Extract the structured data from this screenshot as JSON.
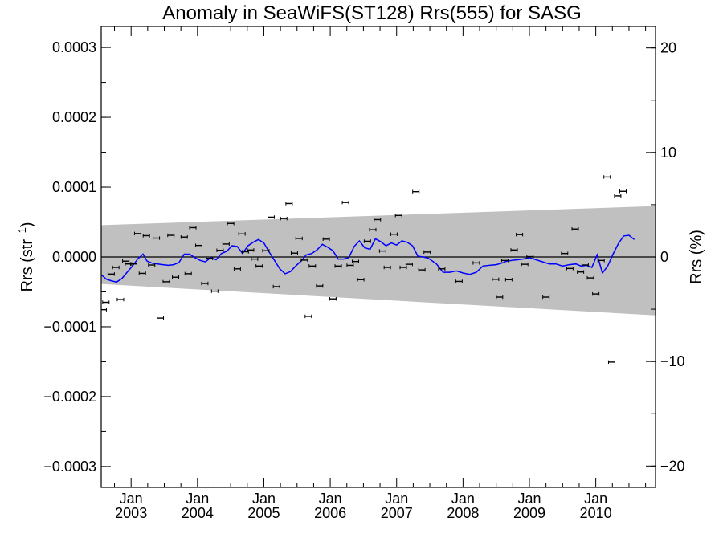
{
  "chart_data": {
    "type": "scatter",
    "title": "Anomaly in SeaWiFS(ST128) Rrs(555) for SASG",
    "ylabel_base": "Rrs (str",
    "ylabel_sup": "−1",
    "ylabel_end": ")",
    "ylabel_right": "Rrs (%)",
    "xlim": [
      2002.55,
      2010.9
    ],
    "ylim": [
      -0.00033,
      0.00033
    ],
    "ylim_right": [
      -22.05,
      22.05
    ],
    "x_ticks": [
      {
        "x": 2003.0,
        "top": "Jan",
        "bottom": "2003"
      },
      {
        "x": 2004.0,
        "top": "Jan",
        "bottom": "2004"
      },
      {
        "x": 2005.0,
        "top": "Jan",
        "bottom": "2005"
      },
      {
        "x": 2006.0,
        "top": "Jan",
        "bottom": "2006"
      },
      {
        "x": 2007.0,
        "top": "Jan",
        "bottom": "2007"
      },
      {
        "x": 2008.0,
        "top": "Jan",
        "bottom": "2008"
      },
      {
        "x": 2009.0,
        "top": "Jan",
        "bottom": "2009"
      },
      {
        "x": 2010.0,
        "top": "Jan",
        "bottom": "2010"
      }
    ],
    "y_ticks": [
      {
        "v": 0.0003,
        "label": "0.0003"
      },
      {
        "v": 0.0002,
        "label": "0.0002"
      },
      {
        "v": 0.0001,
        "label": "0.0001"
      },
      {
        "v": 0.0,
        "label": "0.0000"
      },
      {
        "v": -0.0001,
        "label": "−0.0001"
      },
      {
        "v": -0.0002,
        "label": "−0.0002"
      },
      {
        "v": -0.0003,
        "label": "−0.0003"
      }
    ],
    "y_ticks_right": [
      {
        "v": 20,
        "label": "20"
      },
      {
        "v": 10,
        "label": "10"
      },
      {
        "v": 0,
        "label": "0"
      },
      {
        "v": -10,
        "label": "−10"
      },
      {
        "v": -20,
        "label": "−20"
      }
    ],
    "uncertainty_band": {
      "x": [
        2002.55,
        2010.9
      ],
      "upper": [
        4.55e-05,
        7.28e-05
      ],
      "lower": [
        -3.87e-05,
        -8.37e-05
      ]
    },
    "zero_line": true,
    "colors": {
      "points": "#000000",
      "smooth": "#0000ff",
      "band": "#c0c0c0",
      "axes": "#000000"
    },
    "points": [
      {
        "x": 2002.58,
        "y": -7.55e-05
      },
      {
        "x": 2002.62,
        "y": -6.5e-05
      },
      {
        "x": 2002.7,
        "y": -2.45e-05
      },
      {
        "x": 2002.77,
        "y": -1.5e-05
      },
      {
        "x": 2002.84,
        "y": -6.1e-05
      },
      {
        "x": 2002.92,
        "y": -6e-06
      },
      {
        "x": 2002.96,
        "y": -1e-05
      },
      {
        "x": 2003.04,
        "y": -1e-05
      },
      {
        "x": 2003.1,
        "y": 3.35e-05
      },
      {
        "x": 2003.17,
        "y": -2.35e-05
      },
      {
        "x": 2003.23,
        "y": 3.05e-05
      },
      {
        "x": 2003.31,
        "y": -1.15e-05
      },
      {
        "x": 2003.38,
        "y": 2.7e-05
      },
      {
        "x": 2003.44,
        "y": -8.75e-05
      },
      {
        "x": 2003.53,
        "y": -3.55e-05
      },
      {
        "x": 2003.6,
        "y": 3.1e-05
      },
      {
        "x": 2003.67,
        "y": -2.9e-05
      },
      {
        "x": 2003.8,
        "y": 2.85e-05
      },
      {
        "x": 2003.86,
        "y": -2.4e-05
      },
      {
        "x": 2003.93,
        "y": 4.2e-05
      },
      {
        "x": 2004.02,
        "y": 1.65e-05
      },
      {
        "x": 2004.11,
        "y": -3.8e-05
      },
      {
        "x": 2004.18,
        "y": -2e-06
      },
      {
        "x": 2004.26,
        "y": -4.9e-05
      },
      {
        "x": 2004.34,
        "y": 9.5e-06
      },
      {
        "x": 2004.43,
        "y": 1.85e-05
      },
      {
        "x": 2004.5,
        "y": 4.8e-05
      },
      {
        "x": 2004.6,
        "y": -1.7e-05
      },
      {
        "x": 2004.67,
        "y": 3.3e-05
      },
      {
        "x": 2004.72,
        "y": 7.5e-06
      },
      {
        "x": 2004.8,
        "y": 1e-05
      },
      {
        "x": 2004.86,
        "y": -3e-06
      },
      {
        "x": 2004.93,
        "y": -1.3e-05
      },
      {
        "x": 2005.03,
        "y": 9e-06
      },
      {
        "x": 2005.11,
        "y": 5.7e-05
      },
      {
        "x": 2005.19,
        "y": -4.25e-05
      },
      {
        "x": 2005.3,
        "y": 5.5e-05
      },
      {
        "x": 2005.38,
        "y": 7.65e-05
      },
      {
        "x": 2005.46,
        "y": 5.5e-06
      },
      {
        "x": 2005.53,
        "y": 2.65e-05
      },
      {
        "x": 2005.61,
        "y": -4.5e-06
      },
      {
        "x": 2005.67,
        "y": -8.5e-05
      },
      {
        "x": 2005.73,
        "y": -1.3e-05
      },
      {
        "x": 2005.84,
        "y": -4.15e-05
      },
      {
        "x": 2005.94,
        "y": 2.55e-05
      },
      {
        "x": 2006.04,
        "y": -6e-05
      },
      {
        "x": 2006.12,
        "y": -1.3e-05
      },
      {
        "x": 2006.23,
        "y": 7.8e-05
      },
      {
        "x": 2006.3,
        "y": -1.2e-05
      },
      {
        "x": 2006.38,
        "y": -6.5e-06
      },
      {
        "x": 2006.46,
        "y": -3.25e-05
      },
      {
        "x": 2006.56,
        "y": 2.25e-05
      },
      {
        "x": 2006.64,
        "y": 3.9e-05
      },
      {
        "x": 2006.71,
        "y": 5.35e-05
      },
      {
        "x": 2006.79,
        "y": 8.5e-06
      },
      {
        "x": 2006.86,
        "y": -1.5e-05
      },
      {
        "x": 2006.96,
        "y": 3.25e-05
      },
      {
        "x": 2007.03,
        "y": 5.95e-05
      },
      {
        "x": 2007.1,
        "y": -1.5e-05
      },
      {
        "x": 2007.19,
        "y": -1.05e-05
      },
      {
        "x": 2007.29,
        "y": 9.35e-05
      },
      {
        "x": 2007.38,
        "y": -1.85e-05
      },
      {
        "x": 2007.46,
        "y": 7e-06
      },
      {
        "x": 2007.68,
        "y": -1.7e-05
      },
      {
        "x": 2007.94,
        "y": -3.5e-05
      },
      {
        "x": 2008.2,
        "y": -8.5e-06
      },
      {
        "x": 2008.49,
        "y": -3.2e-05
      },
      {
        "x": 2008.55,
        "y": -5.75e-05
      },
      {
        "x": 2008.63,
        "y": -5e-06
      },
      {
        "x": 2008.69,
        "y": -3.25e-05
      },
      {
        "x": 2008.77,
        "y": 1e-05
      },
      {
        "x": 2008.85,
        "y": 3.2e-05
      },
      {
        "x": 2008.93,
        "y": -1.05e-05
      },
      {
        "x": 2009.01,
        "y": 5e-07
      },
      {
        "x": 2009.25,
        "y": -5.75e-05
      },
      {
        "x": 2009.53,
        "y": 5e-06
      },
      {
        "x": 2009.61,
        "y": -1.65e-05
      },
      {
        "x": 2009.69,
        "y": 4e-05
      },
      {
        "x": 2009.77,
        "y": -2.15e-05
      },
      {
        "x": 2009.84,
        "y": -1.15e-05
      },
      {
        "x": 2009.92,
        "y": -3e-05
      },
      {
        "x": 2010.0,
        "y": -5.3e-05
      },
      {
        "x": 2010.08,
        "y": -5e-06
      },
      {
        "x": 2010.17,
        "y": 0.0001145
      },
      {
        "x": 2010.24,
        "y": -0.0001505
      },
      {
        "x": 2010.33,
        "y": 8.75e-05
      },
      {
        "x": 2010.41,
        "y": 9.4e-05
      }
    ],
    "smooth_line": {
      "x": [
        2002.55,
        2002.63,
        2002.7,
        2002.78,
        2002.86,
        2002.94,
        2003.02,
        2003.1,
        2003.18,
        2003.24,
        2003.32,
        2003.4,
        2003.48,
        2003.56,
        2003.64,
        2003.72,
        2003.8,
        2003.88,
        2003.96,
        2004.04,
        2004.12,
        2004.2,
        2004.28,
        2004.36,
        2004.44,
        2004.52,
        2004.6,
        2004.68,
        2004.76,
        2004.84,
        2004.92,
        2005.0,
        2005.08,
        2005.16,
        2005.24,
        2005.32,
        2005.4,
        2005.48,
        2005.56,
        2005.64,
        2005.72,
        2005.8,
        2005.88,
        2005.96,
        2006.04,
        2006.12,
        2006.2,
        2006.28,
        2006.36,
        2006.44,
        2006.52,
        2006.6,
        2006.68,
        2006.76,
        2006.84,
        2006.92,
        2007.0,
        2007.08,
        2007.16,
        2007.24,
        2007.32,
        2007.4,
        2007.48,
        2007.6,
        2007.7,
        2007.8,
        2007.9,
        2008.0,
        2008.1,
        2008.2,
        2008.3,
        2008.4,
        2008.5,
        2008.58,
        2008.66,
        2008.74,
        2008.82,
        2008.9,
        2009.0,
        2009.1,
        2009.2,
        2009.3,
        2009.4,
        2009.5,
        2009.6,
        2009.7,
        2009.78,
        2009.86,
        2009.94,
        2010.02,
        2010.1,
        2010.18,
        2010.26,
        2010.34,
        2010.42,
        2010.5,
        2010.58
      ],
      "y": [
        -2.55e-05,
        -3.2e-05,
        -3.4e-05,
        -3.6e-05,
        -3.1e-05,
        -2.2e-05,
        -1.3e-05,
        -3e-06,
        4e-06,
        -6e-06,
        -9e-06,
        -1e-05,
        -1.1e-05,
        -1.2e-05,
        -1.1e-05,
        -8e-06,
        4e-06,
        4e-06,
        -1e-06,
        -5e-06,
        -7e-06,
        -1e-06,
        -4e-06,
        5e-06,
        8e-06,
        1.6e-05,
        1.5e-05,
        5e-06,
        1.6e-05,
        2.1e-05,
        2.5e-05,
        2e-05,
        7e-06,
        -5e-06,
        -1.7e-05,
        -2.4e-05,
        -2.1e-05,
        -1.3e-05,
        -6e-06,
        3e-06,
        5e-06,
        1e-05,
        1.8e-05,
        1.4e-05,
        9e-06,
        -3e-06,
        -3e-06,
        -1e-06,
        1.5e-05,
        2.3e-05,
        1.3e-05,
        1.1e-05,
        2.6e-05,
        2.2e-05,
        1.6e-05,
        2e-05,
        1.7e-05,
        2.3e-05,
        2.1e-05,
        1.6e-05,
        1e-06,
        0.0,
        -2e-06,
        -1e-05,
        -2.2e-05,
        -2.2e-05,
        -2e-05,
        -2.3e-05,
        -2.5e-05,
        -2.2e-05,
        -1.3e-05,
        -1.2e-05,
        -1.1e-05,
        -9e-06,
        -6e-06,
        -5e-06,
        -4e-06,
        -3e-06,
        -1e-06,
        -4e-06,
        -7e-06,
        -1e-05,
        -1e-05,
        -1.3e-05,
        -1.1e-05,
        -1e-05,
        -1.3e-05,
        -1.2e-05,
        -1.5e-05,
        3e-06,
        -2.3e-05,
        -1.3e-05,
        4e-06,
        1.9e-05,
        3e-05,
        3.1e-05,
        2.5e-05
      ]
    }
  }
}
